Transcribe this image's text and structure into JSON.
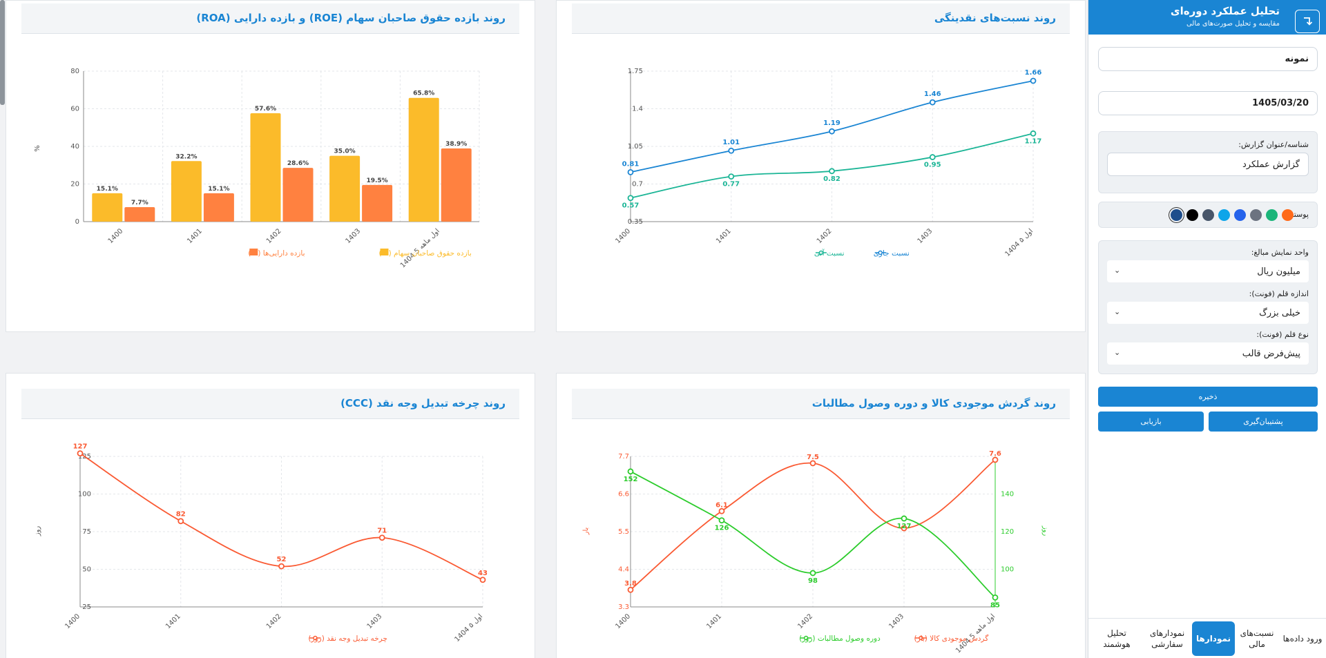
{
  "sidebar": {
    "title": "تحلیل عملکرد دوره‌ای",
    "subtitle": "مقایسه و تحلیل صورت‌های مالی",
    "exit_icon": "return-arrow-icon",
    "company_value": "نمونه",
    "date_value": "1405/03/20",
    "report_label": "شناسه/عنوان گزارش:",
    "report_value": "گزارش عملکرد",
    "theme_label": "پوسته:",
    "theme_colors": [
      "#ff6a1a",
      "#1bb57a",
      "#6c7380",
      "#2563eb",
      "#0ea5e9",
      "#475569",
      "#000000",
      "#1e4e8c"
    ],
    "unit_label": "واحد نمایش مبالغ:",
    "unit_value": "میلیون ریال",
    "font_size_label": "اندازه قلم (فونت):",
    "font_size_value": "خیلی بزرگ",
    "font_type_label": "نوع قلم (فونت):",
    "font_type_value": "پیش‌فرض قالب",
    "save_label": "ذخیره",
    "backup_label": "پشتیبان‌گیری",
    "restore_label": "بازیابی",
    "tabs": [
      {
        "label": "ورود داده‌ها"
      },
      {
        "label": "نسبت‌های مالی"
      },
      {
        "label": "نمودارها"
      },
      {
        "label": "نمودارهای سفارشی"
      },
      {
        "label": "تحلیل هوشمند"
      }
    ]
  },
  "panels": {
    "liquidity_title": "روند نسبت‌های نقدینگی",
    "roe_title": "روند بازده حقوق صاحبان سهام (ROE) و بازده دارایی (ROA)",
    "turnover_title": "روند گردش موجودی کالا و دوره وصول مطالبات",
    "ccc_title": "روند چرخه تبدیل وجه نقد (CCC)"
  },
  "chart_data": [
    {
      "type": "line",
      "title": "روند نسبت‌های نقدینگی",
      "categories": [
        "1400",
        "1401",
        "1402",
        "1403",
        "1404 اول ۵"
      ],
      "yticks": [
        "0.35",
        "0.7",
        "1.05",
        "1.4",
        "1.75"
      ],
      "ylim": [
        0.35,
        1.75
      ],
      "series": [
        {
          "name": "نسبت جاری",
          "color": "#1a85d3",
          "values": [
            0.81,
            1.01,
            1.19,
            1.46,
            1.66
          ],
          "labels": [
            "0.81",
            "1.01",
            "1.19",
            "1.46",
            "1.66"
          ]
        },
        {
          "name": "نسبت آنی",
          "color": "#1bb596",
          "values": [
            0.57,
            0.77,
            0.82,
            0.95,
            1.17
          ],
          "labels": [
            "0.57",
            "0.77",
            "0.82",
            "0.95",
            "1.17"
          ]
        }
      ],
      "grid": true,
      "legend": "bottom"
    },
    {
      "type": "bar",
      "title": "روند بازده حقوق صاحبان سهام (ROE) و بازده دارایی (ROA)",
      "categories": [
        "1400",
        "1401",
        "1402",
        "1403",
        "1404 اول ماهه 5"
      ],
      "yticks": [
        "0",
        "20",
        "40",
        "60",
        "80"
      ],
      "ylim": [
        0,
        80
      ],
      "ylabel": "%",
      "series": [
        {
          "name": "بازده حقوق صاحبان سهام (%)",
          "color": "#fbbb2a",
          "values": [
            15.1,
            32.2,
            57.6,
            35.0,
            65.8
          ],
          "labels": [
            "15.1%",
            "32.2%",
            "57.6%",
            "35.0%",
            "65.8%"
          ]
        },
        {
          "name": "بازده دارایی‌ها (%)",
          "color": "#ff8140",
          "values": [
            7.7,
            15.1,
            28.6,
            19.5,
            38.9
          ],
          "labels": [
            "7.7%",
            "15.1%",
            "28.6%",
            "19.5%",
            "38.9%"
          ]
        }
      ],
      "grid": true,
      "legend": "bottom"
    },
    {
      "type": "line",
      "title": "روند گردش موجودی کالا و دوره وصول مطالبات",
      "categories": [
        "1400",
        "1401",
        "1402",
        "1403",
        "1404 اول ماهه 5"
      ],
      "yticks_left": [
        "3.3",
        "4.4",
        "5.5",
        "6.6",
        "7.7"
      ],
      "ylim_left": [
        3.3,
        7.7
      ],
      "ylabel_left": "بار",
      "yticks_right": [
        "100",
        "120",
        "140"
      ],
      "ylim_right": [
        80,
        160
      ],
      "ylabel_right": "روز",
      "series": [
        {
          "name": "گردش موجودی کالا (بار)",
          "axis": "left",
          "color": "#fa5a33",
          "values": [
            3.8,
            6.1,
            7.5,
            5.6,
            7.6
          ],
          "labels": [
            "3.8",
            "6.1",
            "7.5",
            "",
            "7.6"
          ]
        },
        {
          "name": "دوره وصول مطالبات (روز)",
          "axis": "right",
          "color": "#2ccc2c",
          "values": [
            152,
            126,
            98,
            127,
            85
          ],
          "labels": [
            "152",
            "126",
            "98",
            "127",
            "85"
          ]
        }
      ],
      "grid": true,
      "legend": "bottom"
    },
    {
      "type": "line",
      "title": "روند چرخه تبدیل وجه نقد (CCC)",
      "categories": [
        "1400",
        "1401",
        "1402",
        "1403",
        "1404 اول ۵"
      ],
      "yticks": [
        "25",
        "50",
        "75",
        "100",
        "125"
      ],
      "ylim": [
        25,
        125
      ],
      "ylabel": "روز",
      "series": [
        {
          "name": "چرخه تبدیل وجه نقد (روز)",
          "color": "#fa5a33",
          "values": [
            127,
            82,
            52,
            71,
            43
          ],
          "labels": [
            "127",
            "82",
            "52",
            "71",
            "43"
          ]
        }
      ],
      "grid": true,
      "legend": "bottom"
    }
  ]
}
